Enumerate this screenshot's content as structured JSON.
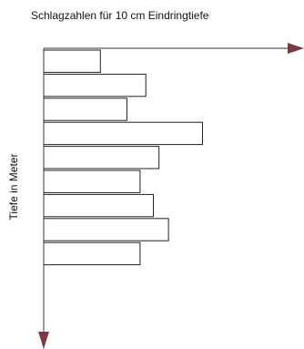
{
  "chart_data": {
    "type": "bar",
    "orientation": "horizontal",
    "title": "Schlagzahlen für 10 cm Eindringtiefe",
    "xlabel": "",
    "ylabel": "Tiefe in Meter",
    "values": [
      3,
      5.4,
      4.4,
      8.4,
      6.1,
      5.1,
      5.8,
      6.6,
      5.1
    ],
    "xlim": [
      0,
      13
    ],
    "grid": false,
    "legend": "none",
    "colors": {
      "axis": "#333333",
      "bar_fill": "#ffffff",
      "bar_stroke": "#222222",
      "arrow": "#7a3a44"
    }
  }
}
